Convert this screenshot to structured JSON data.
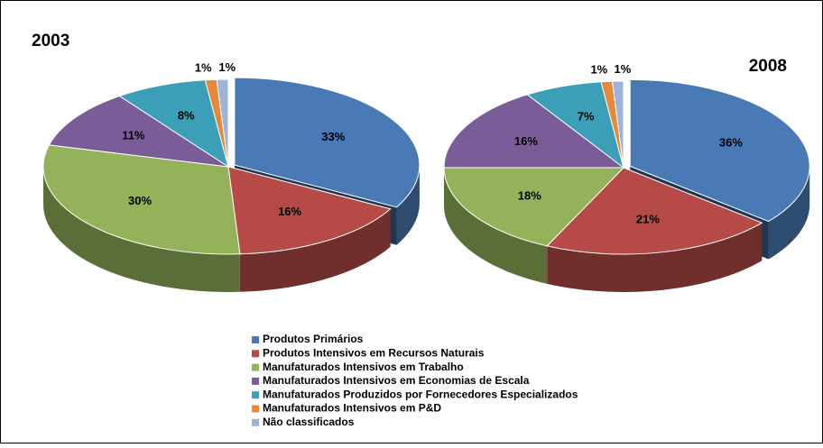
{
  "chart_data": [
    {
      "type": "pie",
      "title": "2003",
      "categories": [
        "Produtos Primários",
        "Produtos Intensivos em Recursos Naturais",
        "Manufaturados Intensivos em Trabalho",
        "Manufaturados Intensivos em Economias de Escala",
        "Manufaturados Produzidos por Fornecedores Especializados",
        "Manufaturados Intensivos em P&D",
        "Não classificados"
      ],
      "colors": [
        "#4a7ab5",
        "#b54a47",
        "#93b259",
        "#7a5c99",
        "#3ba0b7",
        "#e8883a",
        "#9db3d8"
      ],
      "values": [
        33,
        16,
        30,
        11,
        8,
        1,
        1
      ],
      "value_labels": [
        "33%",
        "16%",
        "30%",
        "11%",
        "8%",
        "1%",
        "1%"
      ],
      "legend": "bottom"
    },
    {
      "type": "pie",
      "title": "2008",
      "values": [
        36,
        21,
        18,
        16,
        7,
        1,
        1
      ],
      "value_labels": [
        "36%",
        "21%",
        "18%",
        "16%",
        "7%",
        "1%",
        "1%"
      ]
    }
  ]
}
